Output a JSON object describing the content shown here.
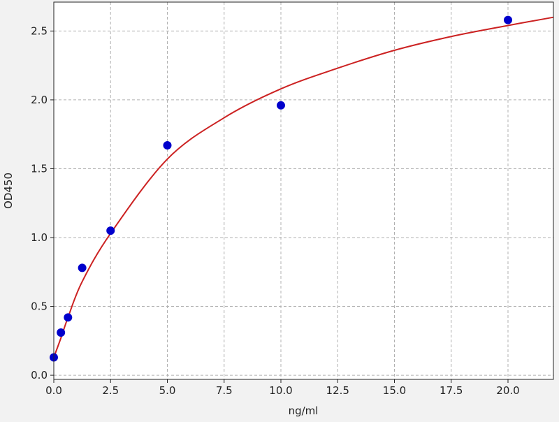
{
  "chart_data": {
    "type": "scatter",
    "title": "",
    "xlabel": "ng/ml",
    "ylabel": "OD450",
    "xlim": [
      0,
      22
    ],
    "ylim": [
      -0.03,
      2.71
    ],
    "xticks": [
      0.0,
      2.5,
      5.0,
      7.5,
      10.0,
      12.5,
      15.0,
      17.5,
      20.0
    ],
    "xtick_labels": [
      "0.0",
      "2.5",
      "5.0",
      "7.5",
      "10.0",
      "12.5",
      "15.0",
      "17.5",
      "20.0"
    ],
    "yticks": [
      0.0,
      0.5,
      1.0,
      1.5,
      2.0,
      2.5
    ],
    "ytick_labels": [
      "0.0",
      "0.5",
      "1.0",
      "1.5",
      "2.0",
      "2.5"
    ],
    "grid": true,
    "points": {
      "color": "#0000cc",
      "x": [
        0,
        0.3125,
        0.625,
        1.25,
        2.5,
        5,
        10,
        20
      ],
      "y": [
        0.13,
        0.31,
        0.42,
        0.78,
        1.05,
        1.67,
        1.96,
        2.58
      ]
    },
    "fit_curve": {
      "color": "#cc2222",
      "x": [
        0,
        0.3125,
        0.625,
        1.25,
        2.5,
        5,
        7.5,
        10,
        12.5,
        15,
        17.5,
        20,
        22
      ],
      "y": [
        0.13,
        0.27,
        0.42,
        0.68,
        1.03,
        1.57,
        1.87,
        2.08,
        2.23,
        2.36,
        2.46,
        2.54,
        2.6
      ]
    }
  }
}
